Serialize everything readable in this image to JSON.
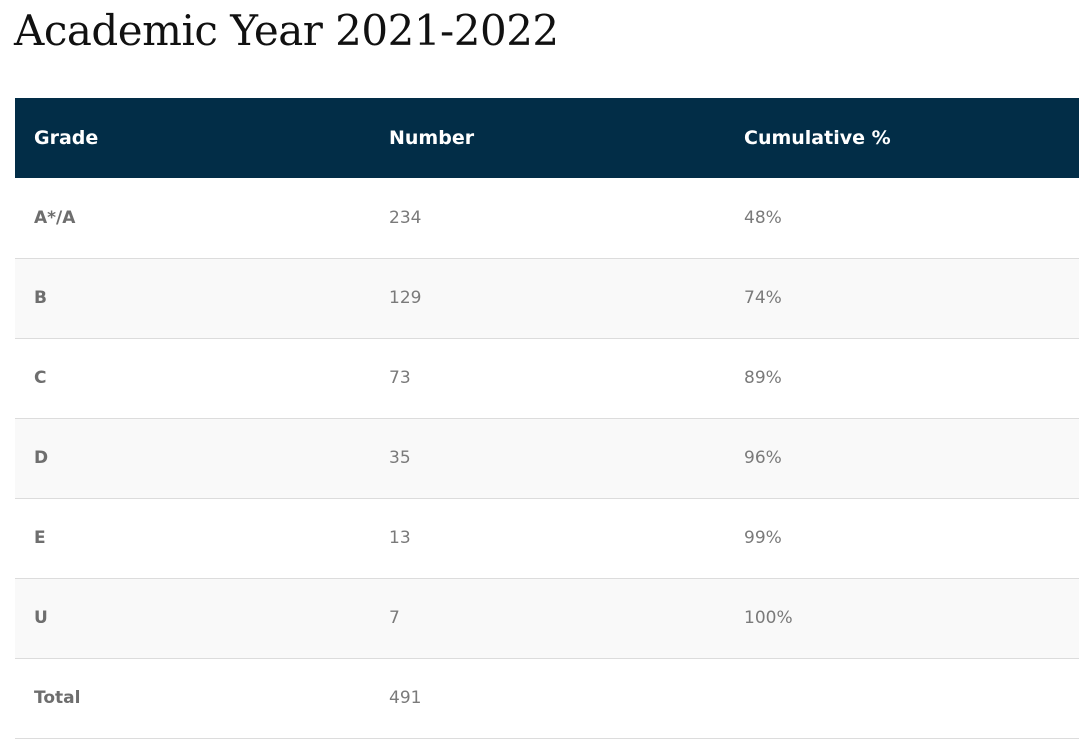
{
  "page": {
    "title": "Academic Year 2021-2022"
  },
  "table": {
    "headers": [
      "Grade",
      "Number",
      "Cumulative %"
    ],
    "rows": [
      {
        "grade": "A*/A",
        "number": "234",
        "cumulative": "48%"
      },
      {
        "grade": "B",
        "number": "129",
        "cumulative": "74%"
      },
      {
        "grade": "C",
        "number": "73",
        "cumulative": "89%"
      },
      {
        "grade": "D",
        "number": "35",
        "cumulative": "96%"
      },
      {
        "grade": "E",
        "number": "13",
        "cumulative": "99%"
      },
      {
        "grade": "U",
        "number": "7",
        "cumulative": "100%"
      },
      {
        "grade": "Total",
        "number": "491",
        "cumulative": ""
      }
    ]
  },
  "colors": {
    "header_background": "#022d47",
    "header_text": "#ffffff",
    "body_text": "#7a7a7a",
    "stripe_background": "#f9f9f9",
    "row_divider": "#dcdcdc"
  }
}
